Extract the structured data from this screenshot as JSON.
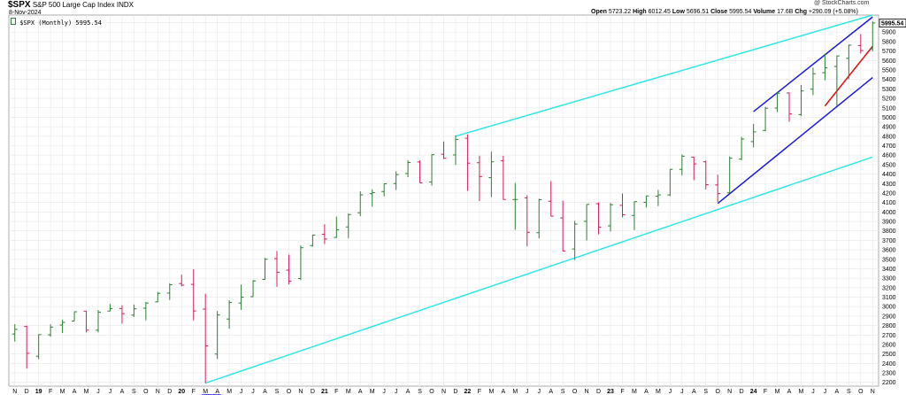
{
  "header": {
    "symbol": "$SPX",
    "name": "S&P 500 Large Cap Index",
    "exchange": "INDX",
    "date": "8-Nov-2024",
    "watermark": "@ StockCharts.com",
    "ohlc": {
      "open_label": "Open",
      "open": "5723.22",
      "high_label": "High",
      "high": "6012.45",
      "low_label": "Low",
      "low": "5696.51",
      "close_label": "Close",
      "close": "5995.54",
      "volume_label": "Volume",
      "volume": "17.6B",
      "chg_label": "Chg",
      "chg": "+290.09 (+5.08%)"
    },
    "legend": "$SPX (Monthly) 5995.54",
    "last_price": "5995.54"
  },
  "colors": {
    "up": "#2e7d32",
    "down": "#d81b60",
    "cyan": "#2ee6e6",
    "blue": "#1a1adf",
    "red": "#e01010",
    "grid": "#e8e8e8"
  },
  "chart_data": {
    "type": "ohlc",
    "title": "$SPX S&P 500 Large Cap Index INDX",
    "period": "Monthly",
    "yaxis": {
      "ylim": [
        2160,
        6080
      ],
      "ticks": [
        2200,
        2300,
        2400,
        2500,
        2600,
        2700,
        2800,
        2900,
        3000,
        3100,
        3200,
        3300,
        3400,
        3500,
        3600,
        3700,
        3800,
        3900,
        4000,
        4100,
        4200,
        4300,
        4400,
        4500,
        4600,
        4700,
        4800,
        4900,
        5000,
        5100,
        5200,
        5300,
        5400,
        5500,
        5600,
        5700,
        5800,
        5900,
        6000
      ]
    },
    "xaxis": {
      "labels": [
        "N",
        "D",
        "19",
        "F",
        "M",
        "A",
        "M",
        "J",
        "J",
        "A",
        "S",
        "O",
        "N",
        "D",
        "20",
        "F",
        "M",
        "A",
        "M",
        "J",
        "J",
        "A",
        "S",
        "O",
        "N",
        "D",
        "21",
        "F",
        "M",
        "A",
        "M",
        "J",
        "J",
        "A",
        "S",
        "O",
        "N",
        "D",
        "22",
        "F",
        "M",
        "A",
        "M",
        "J",
        "J",
        "A",
        "S",
        "O",
        "N",
        "D",
        "23",
        "F",
        "M",
        "A",
        "M",
        "J",
        "J",
        "A",
        "S",
        "O",
        "N",
        "D",
        "24",
        "F",
        "M",
        "A",
        "M",
        "J",
        "J",
        "A",
        "S",
        "O",
        "N"
      ]
    },
    "bars": [
      {
        "o": 2711,
        "h": 2815,
        "l": 2631,
        "c": 2760
      },
      {
        "o": 2790,
        "h": 2800,
        "l": 2346,
        "c": 2507
      },
      {
        "o": 2477,
        "h": 2708,
        "l": 2444,
        "c": 2704
      },
      {
        "o": 2702,
        "h": 2813,
        "l": 2682,
        "c": 2784
      },
      {
        "o": 2805,
        "h": 2861,
        "l": 2722,
        "c": 2834
      },
      {
        "o": 2848,
        "h": 2949,
        "l": 2848,
        "c": 2946
      },
      {
        "o": 2952,
        "h": 2954,
        "l": 2729,
        "c": 2752
      },
      {
        "o": 2751,
        "h": 2964,
        "l": 2728,
        "c": 2942
      },
      {
        "o": 2953,
        "h": 3028,
        "l": 2952,
        "c": 2980
      },
      {
        "o": 2980,
        "h": 3014,
        "l": 2822,
        "c": 2926
      },
      {
        "o": 2910,
        "h": 3022,
        "l": 2892,
        "c": 2977
      },
      {
        "o": 2983,
        "h": 3050,
        "l": 2856,
        "c": 3038
      },
      {
        "o": 3050,
        "h": 3154,
        "l": 3050,
        "c": 3141
      },
      {
        "o": 3143,
        "h": 3247,
        "l": 3070,
        "c": 3231
      },
      {
        "o": 3244,
        "h": 3337,
        "l": 3214,
        "c": 3226
      },
      {
        "o": 3235,
        "h": 3394,
        "l": 2855,
        "c": 2954
      },
      {
        "o": 2974,
        "h": 3136,
        "l": 2192,
        "c": 2585
      },
      {
        "o": 2499,
        "h": 2954,
        "l": 2447,
        "c": 2912
      },
      {
        "o": 2869,
        "h": 3068,
        "l": 2766,
        "c": 3044
      },
      {
        "o": 3038,
        "h": 3233,
        "l": 2966,
        "c": 3100
      },
      {
        "o": 3105,
        "h": 3280,
        "l": 3101,
        "c": 3271
      },
      {
        "o": 3288,
        "h": 3514,
        "l": 3284,
        "c": 3500
      },
      {
        "o": 3507,
        "h": 3588,
        "l": 3209,
        "c": 3363
      },
      {
        "o": 3385,
        "h": 3549,
        "l": 3234,
        "c": 3270
      },
      {
        "o": 3296,
        "h": 3646,
        "l": 3279,
        "c": 3622
      },
      {
        "o": 3645,
        "h": 3760,
        "l": 3633,
        "c": 3756
      },
      {
        "o": 3764,
        "h": 3870,
        "l": 3662,
        "c": 3714
      },
      {
        "o": 3731,
        "h": 3950,
        "l": 3725,
        "c": 3811
      },
      {
        "o": 3842,
        "h": 3983,
        "l": 3723,
        "c": 3973
      },
      {
        "o": 3992,
        "h": 4218,
        "l": 3955,
        "c": 4181
      },
      {
        "o": 4193,
        "h": 4238,
        "l": 4056,
        "c": 4204
      },
      {
        "o": 4216,
        "h": 4302,
        "l": 4165,
        "c": 4298
      },
      {
        "o": 4300,
        "h": 4429,
        "l": 4233,
        "c": 4395
      },
      {
        "o": 4406,
        "h": 4546,
        "l": 4368,
        "c": 4523
      },
      {
        "o": 4528,
        "h": 4546,
        "l": 4306,
        "c": 4308
      },
      {
        "o": 4317,
        "h": 4609,
        "l": 4279,
        "c": 4605
      },
      {
        "o": 4610,
        "h": 4744,
        "l": 4560,
        "c": 4567
      },
      {
        "o": 4602,
        "h": 4809,
        "l": 4496,
        "c": 4766
      },
      {
        "o": 4779,
        "h": 4819,
        "l": 4223,
        "c": 4516
      },
      {
        "o": 4520,
        "h": 4595,
        "l": 4115,
        "c": 4374
      },
      {
        "o": 4363,
        "h": 4637,
        "l": 4157,
        "c": 4530
      },
      {
        "o": 4541,
        "h": 4593,
        "l": 4129,
        "c": 4132
      },
      {
        "o": 4131,
        "h": 4307,
        "l": 3811,
        "c": 4132
      },
      {
        "o": 4149,
        "h": 4177,
        "l": 3637,
        "c": 3785
      },
      {
        "o": 3781,
        "h": 4140,
        "l": 3721,
        "c": 4130
      },
      {
        "o": 4113,
        "h": 4325,
        "l": 3955,
        "c": 3955
      },
      {
        "o": 3937,
        "h": 4120,
        "l": 3585,
        "c": 3586
      },
      {
        "o": 3609,
        "h": 3906,
        "l": 3492,
        "c": 3872
      },
      {
        "o": 3901,
        "h": 4080,
        "l": 3699,
        "c": 4080
      },
      {
        "o": 4087,
        "h": 4101,
        "l": 3764,
        "c": 3840
      },
      {
        "o": 3853,
        "h": 4095,
        "l": 3794,
        "c": 4077
      },
      {
        "o": 4070,
        "h": 4195,
        "l": 3943,
        "c": 3970
      },
      {
        "o": 3963,
        "h": 4110,
        "l": 3808,
        "c": 4109
      },
      {
        "o": 4102,
        "h": 4170,
        "l": 4048,
        "c": 4169
      },
      {
        "o": 4166,
        "h": 4232,
        "l": 4062,
        "c": 4180
      },
      {
        "o": 4180,
        "h": 4450,
        "l": 4166,
        "c": 4450
      },
      {
        "o": 4450,
        "h": 4608,
        "l": 4385,
        "c": 4589
      },
      {
        "o": 4579,
        "h": 4584,
        "l": 4336,
        "c": 4508
      },
      {
        "o": 4530,
        "h": 4541,
        "l": 4238,
        "c": 4288
      },
      {
        "o": 4285,
        "h": 4394,
        "l": 4104,
        "c": 4194
      },
      {
        "o": 4202,
        "h": 4587,
        "l": 4197,
        "c": 4568
      },
      {
        "o": 4559,
        "h": 4793,
        "l": 4547,
        "c": 4770
      },
      {
        "o": 4743,
        "h": 4931,
        "l": 4683,
        "c": 4846
      },
      {
        "o": 4861,
        "h": 5111,
        "l": 4853,
        "c": 5096
      },
      {
        "o": 5098,
        "h": 5265,
        "l": 5056,
        "c": 5254
      },
      {
        "o": 5257,
        "h": 5264,
        "l": 4954,
        "c": 5036
      },
      {
        "o": 5029,
        "h": 5341,
        "l": 5012,
        "c": 5278
      },
      {
        "o": 5297,
        "h": 5524,
        "l": 5234,
        "c": 5460
      },
      {
        "o": 5471,
        "h": 5669,
        "l": 5391,
        "c": 5522
      },
      {
        "o": 5537,
        "h": 5652,
        "l": 5120,
        "c": 5648
      },
      {
        "o": 5623,
        "h": 5767,
        "l": 5403,
        "c": 5762
      },
      {
        "o": 5758,
        "h": 5878,
        "l": 5674,
        "c": 5705
      },
      {
        "o": 5723,
        "h": 6012,
        "l": 5697,
        "c": 5996
      }
    ],
    "trendlines": [
      {
        "name": "upper-channel",
        "color": "cyan",
        "from": {
          "bar": 37,
          "price": 4800
        },
        "to": {
          "bar": 72,
          "price": 6080
        }
      },
      {
        "name": "lower-channel",
        "color": "cyan",
        "from": {
          "bar": 16,
          "price": 2192
        },
        "to": {
          "bar": 72,
          "price": 4580
        }
      },
      {
        "name": "blue-upper",
        "color": "blue",
        "from": {
          "bar": 62,
          "price": 5060
        },
        "to": {
          "bar": 72,
          "price": 6060
        }
      },
      {
        "name": "blue-lower",
        "color": "blue",
        "from": {
          "bar": 59,
          "price": 4090
        },
        "to": {
          "bar": 72,
          "price": 5420
        }
      },
      {
        "name": "red-support",
        "color": "red",
        "from": {
          "bar": 68,
          "price": 5120
        },
        "to": {
          "bar": 72,
          "price": 5750
        }
      }
    ]
  }
}
